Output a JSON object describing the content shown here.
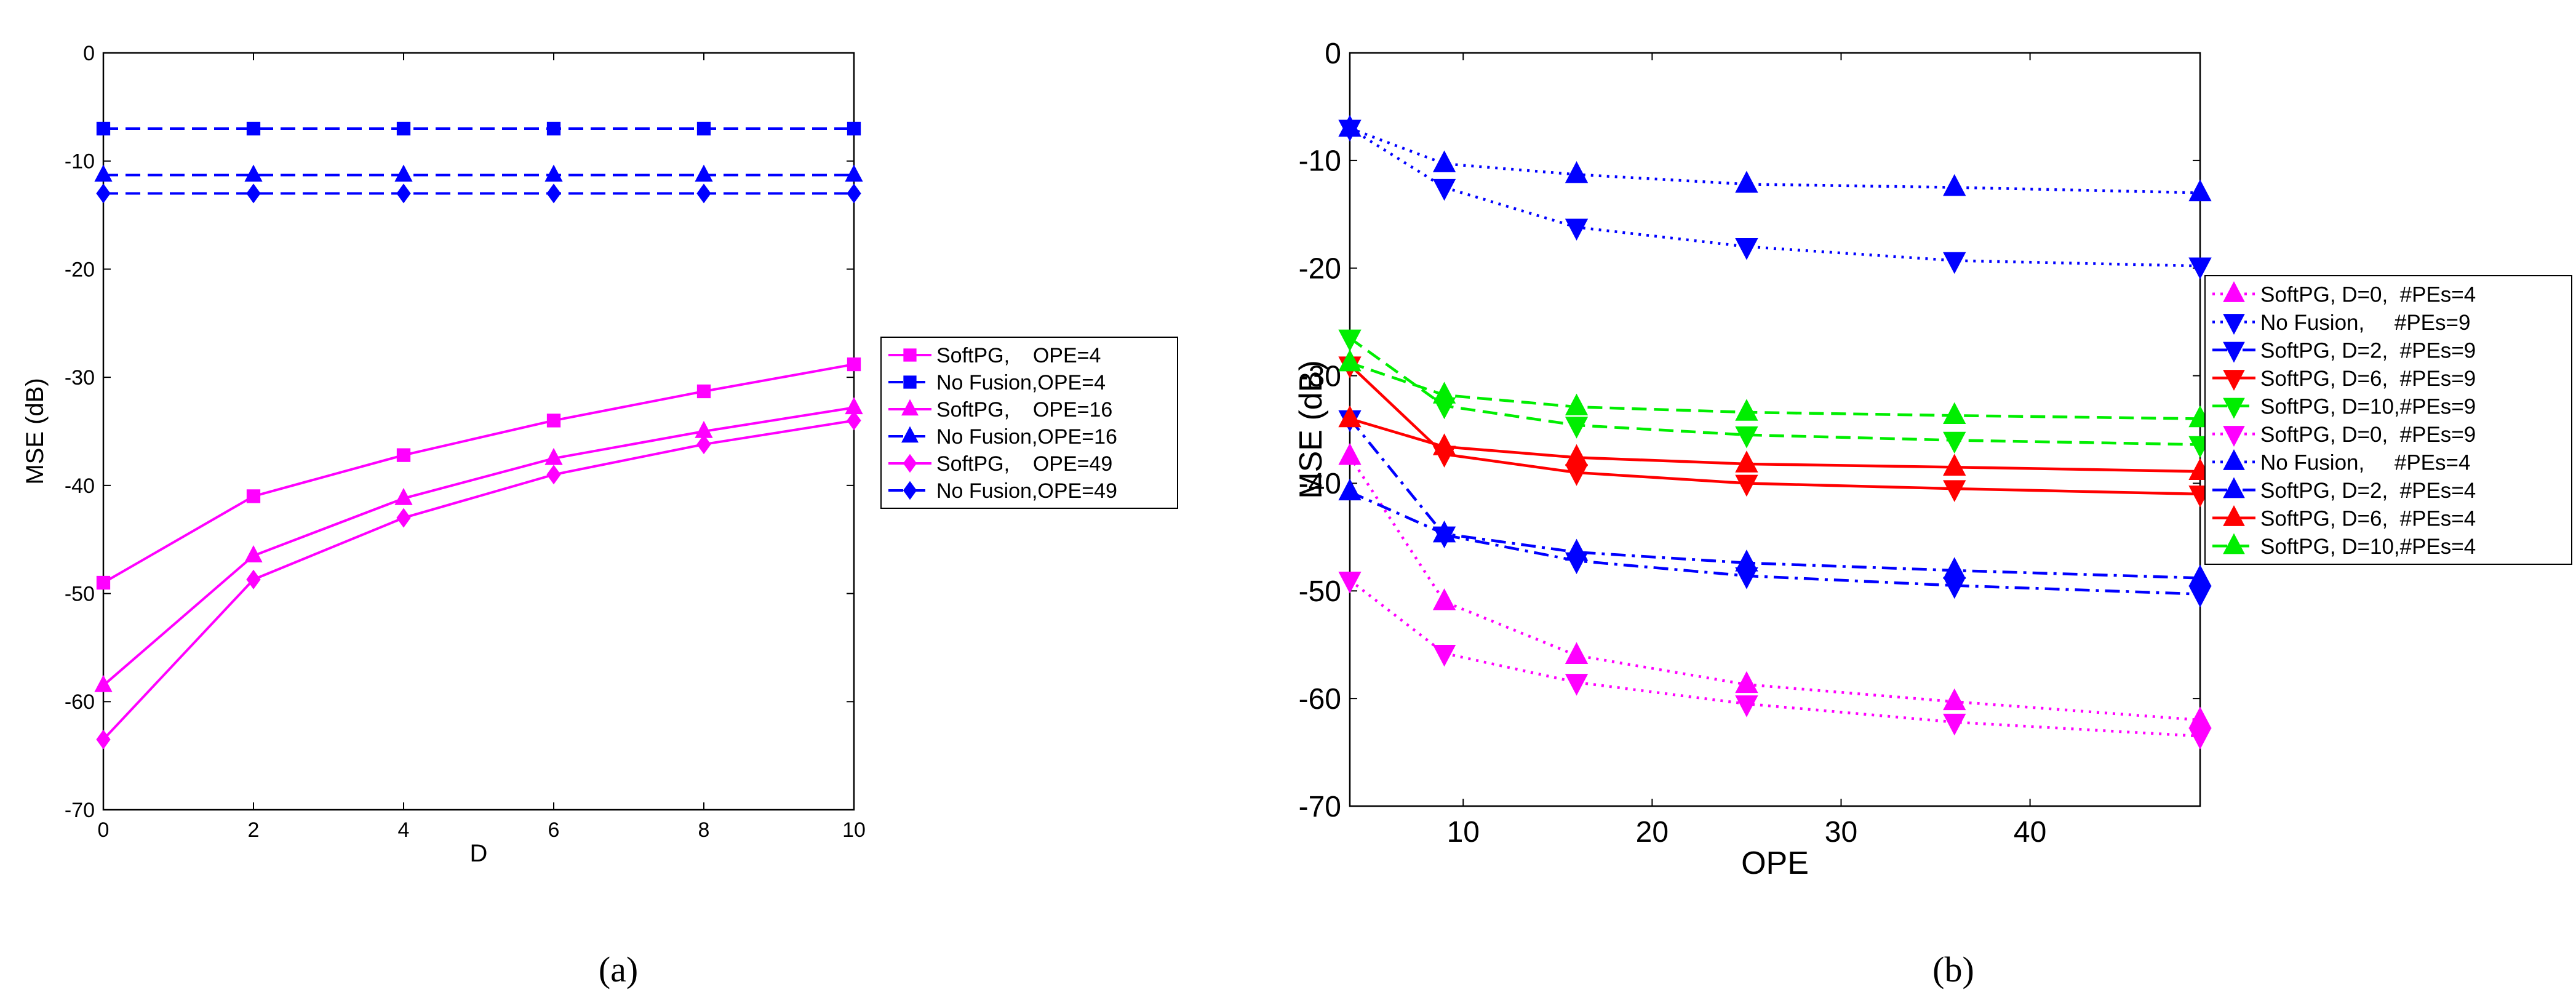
{
  "chart_data": [
    {
      "type": "line",
      "caption": "(a)",
      "xlabel": "D",
      "ylabel": "MSE (dB)",
      "xlim": [
        0,
        10
      ],
      "ylim": [
        -70,
        0
      ],
      "xticks": [
        0,
        2,
        4,
        6,
        8,
        10
      ],
      "yticks": [
        0,
        -10,
        -20,
        -30,
        -40,
        -50,
        -60,
        -70
      ],
      "x": [
        0,
        2,
        4,
        6,
        8,
        10
      ],
      "series": [
        {
          "name": "SoftPG,    OPE=4",
          "color": "#ff00ff",
          "marker": "square",
          "dash": "solid",
          "values": [
            -49,
            -41,
            -37.2,
            -34,
            -31.3,
            -28.8
          ]
        },
        {
          "name": "No Fusion,OPE=4",
          "color": "#0000ff",
          "marker": "square",
          "dash": "dashed",
          "values": [
            -7,
            -7,
            -7,
            -7,
            -7,
            -7
          ]
        },
        {
          "name": "SoftPG,    OPE=16",
          "color": "#ff00ff",
          "marker": "triangle-up",
          "dash": "solid",
          "values": [
            -58.5,
            -46.5,
            -41.2,
            -37.5,
            -35,
            -32.8
          ]
        },
        {
          "name": "No Fusion,OPE=16",
          "color": "#0000ff",
          "marker": "triangle-up",
          "dash": "dashed",
          "values": [
            -11.3,
            -11.3,
            -11.3,
            -11.3,
            -11.3,
            -11.3
          ]
        },
        {
          "name": "SoftPG,    OPE=49",
          "color": "#ff00ff",
          "marker": "diamond",
          "dash": "solid",
          "values": [
            -63.5,
            -48.7,
            -43,
            -39,
            -36.2,
            -34
          ]
        },
        {
          "name": "No Fusion,OPE=49",
          "color": "#0000ff",
          "marker": "diamond",
          "dash": "dashed",
          "values": [
            -13,
            -13,
            -13,
            -13,
            -13,
            -13
          ]
        }
      ],
      "legend": "right"
    },
    {
      "type": "line",
      "caption": "(b)",
      "xlabel": "OPE",
      "ylabel": "MSE (dB)",
      "xlim": [
        4,
        49
      ],
      "ylim": [
        -70,
        0
      ],
      "xticks": [
        10,
        20,
        30,
        40
      ],
      "yticks": [
        0,
        -10,
        -20,
        -30,
        -40,
        -50,
        -60,
        -70
      ],
      "x": [
        4,
        9,
        16,
        25,
        36,
        49
      ],
      "series": [
        {
          "name": "SoftPG, D=0,  #PEs=4",
          "color": "#ff00ff",
          "marker": "triangle-up",
          "dash": "dotted",
          "values": [
            -37.5,
            -51,
            -56,
            -58.7,
            -60.3,
            -62
          ]
        },
        {
          "name": "No Fusion,     #PEs=9",
          "color": "#0000ff",
          "marker": "triangle-down",
          "dash": "dotted",
          "values": [
            -7,
            -12.5,
            -16.2,
            -18,
            -19.3,
            -19.8
          ]
        },
        {
          "name": "SoftPG, D=2,  #PEs=9",
          "color": "#0000ff",
          "marker": "triangle-down",
          "dash": "dashdot",
          "values": [
            -34,
            -44.8,
            -47.2,
            -48.6,
            -49.5,
            -50.3
          ]
        },
        {
          "name": "SoftPG, D=6,  #PEs=9",
          "color": "#ff0000",
          "marker": "triangle-down",
          "dash": "solid",
          "values": [
            -29,
            -37.3,
            -39,
            -40,
            -40.5,
            -41
          ]
        },
        {
          "name": "SoftPG, D=10,#PEs=9",
          "color": "#00ee00",
          "marker": "triangle-down",
          "dash": "dashed",
          "values": [
            -26.5,
            -32.8,
            -34.6,
            -35.5,
            -36,
            -36.4
          ]
        },
        {
          "name": "SoftPG, D=0,  #PEs=9",
          "color": "#ff00ff",
          "marker": "triangle-down",
          "dash": "dotted",
          "values": [
            -49,
            -55.8,
            -58.5,
            -60.5,
            -62.2,
            -63.5
          ]
        },
        {
          "name": "No Fusion,     #PEs=4",
          "color": "#0000ff",
          "marker": "triangle-up",
          "dash": "dotted",
          "values": [
            -7,
            -10.3,
            -11.3,
            -12.2,
            -12.5,
            -13
          ]
        },
        {
          "name": "SoftPG, D=2,  #PEs=4",
          "color": "#0000ff",
          "marker": "triangle-up",
          "dash": "dashdot",
          "values": [
            -40.8,
            -44.7,
            -46.4,
            -47.4,
            -48.1,
            -48.8
          ]
        },
        {
          "name": "SoftPG, D=6,  #PEs=4",
          "color": "#ff0000",
          "marker": "triangle-up",
          "dash": "solid",
          "values": [
            -34,
            -36.6,
            -37.6,
            -38.2,
            -38.5,
            -38.9
          ]
        },
        {
          "name": "SoftPG, D=10,#PEs=4",
          "color": "#00ee00",
          "marker": "triangle-up",
          "dash": "dashed",
          "values": [
            -28.8,
            -31.8,
            -32.9,
            -33.4,
            -33.7,
            -34
          ]
        }
      ],
      "legend": "right"
    }
  ]
}
